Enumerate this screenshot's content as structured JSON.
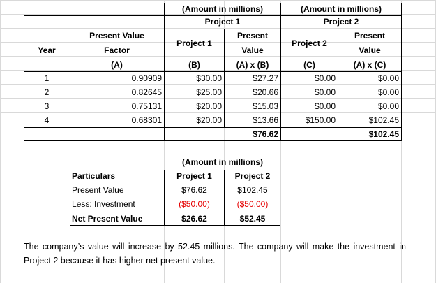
{
  "top_table": {
    "header_amount_1": "(Amount in millions)",
    "header_project_1": "Project 1",
    "header_amount_2": "(Amount in millions)",
    "header_project_2": "Project 2",
    "col_year": "Year",
    "col_pvf_line1": "Present Value",
    "col_pvf_line2": "Factor",
    "col_pvf_code": "(A)",
    "col_p1": "Project 1",
    "col_p1_code": "(B)",
    "col_pv1_line1": "Present",
    "col_pv1_line2": "Value",
    "col_pv1_code": "(A) x (B)",
    "col_p2": "Project 2",
    "col_p2_code": "(C)",
    "col_pv2_line1": "Present",
    "col_pv2_line2": "Value",
    "col_pv2_code": "(A) x (C)",
    "rows": [
      {
        "year": "1",
        "factor": "0.90909",
        "p1": "$30.00",
        "pv1": "$27.27",
        "p2": "$0.00",
        "pv2": "$0.00"
      },
      {
        "year": "2",
        "factor": "0.82645",
        "p1": "$25.00",
        "pv1": "$20.66",
        "p2": "$0.00",
        "pv2": "$0.00"
      },
      {
        "year": "3",
        "factor": "0.75131",
        "p1": "$20.00",
        "pv1": "$15.03",
        "p2": "$0.00",
        "pv2": "$0.00"
      },
      {
        "year": "4",
        "factor": "0.68301",
        "p1": "$20.00",
        "pv1": "$13.66",
        "p2": "$150.00",
        "pv2": "$102.45"
      }
    ],
    "total_pv1": "$76.62",
    "total_pv2": "$102.45"
  },
  "npv_table": {
    "amount_header": "(Amount in millions)",
    "col_particulars": "Particulars",
    "col_p1": "Project 1",
    "col_p2": "Project 2",
    "rows": [
      {
        "label": "Present Value",
        "p1": "$76.62",
        "p2": "$102.45"
      },
      {
        "label": "Less: Investment",
        "p1": "($50.00)",
        "p2": "($50.00)"
      },
      {
        "label": "Net Present Value",
        "p1": "$26.62",
        "p2": "$52.45"
      }
    ]
  },
  "note": "The company’s value will increase by 52.45 millions. The company will make the investment in Project 2 because it has higher net present value."
}
